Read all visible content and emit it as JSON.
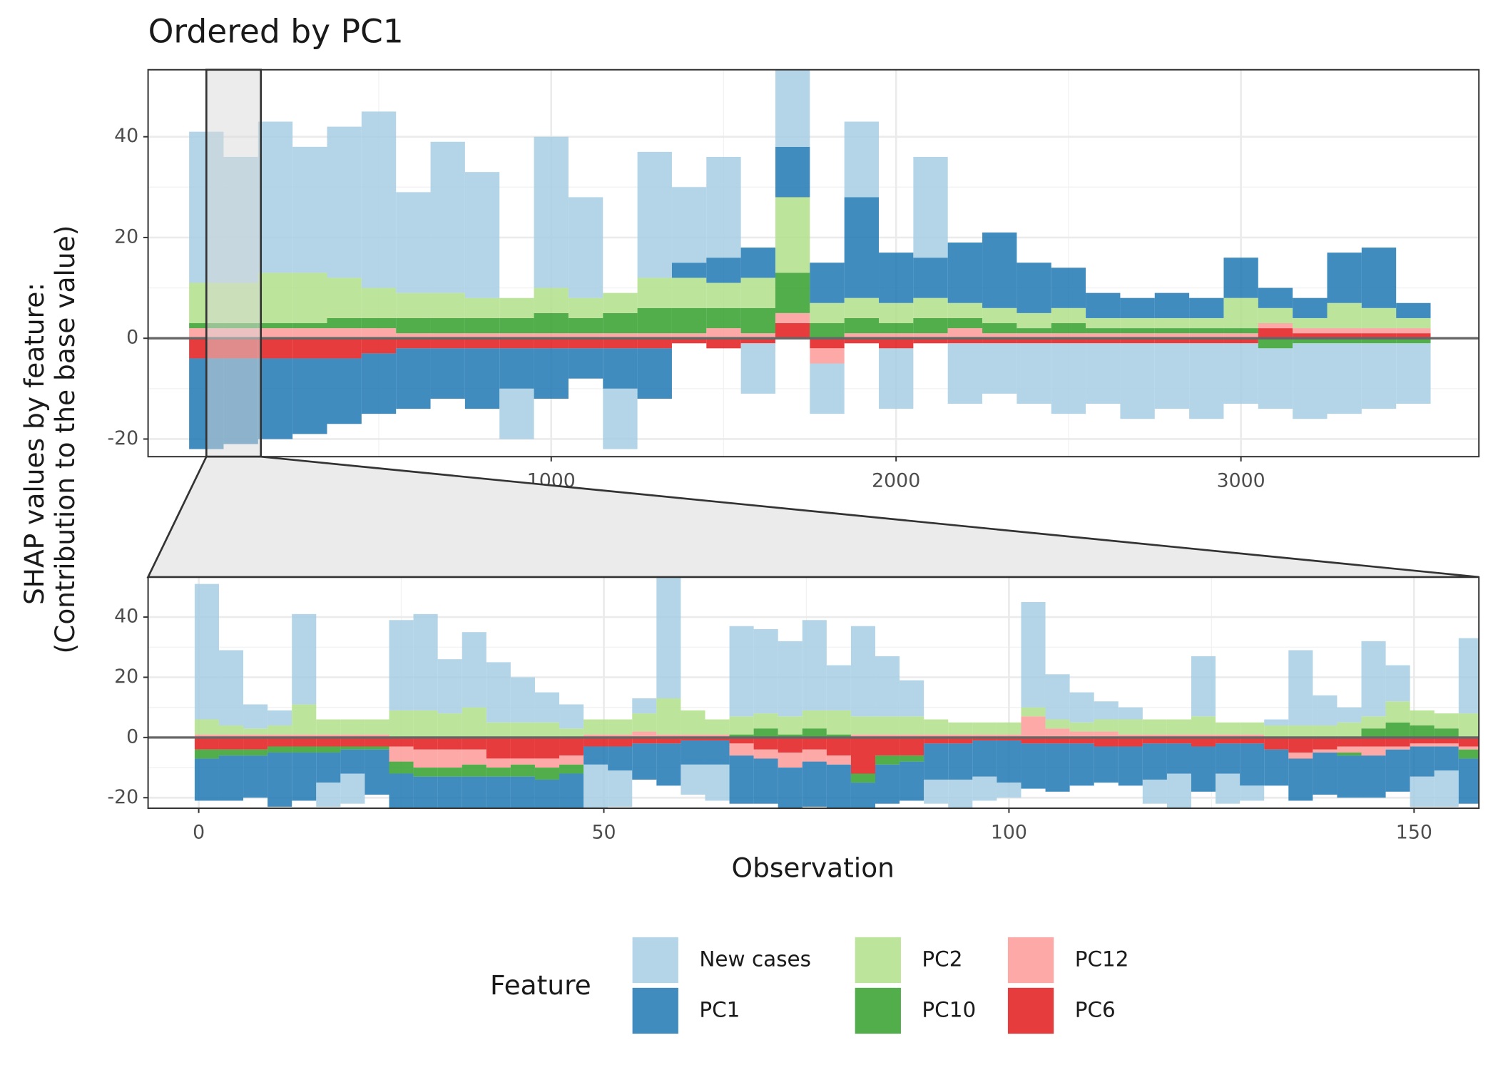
{
  "chart_data": [
    {
      "type": "bar",
      "title": "Ordered by PC1",
      "ylabel": [
        "SHAP values by feature:",
        "(Contribution to the base value)"
      ],
      "x": [
        0,
        100,
        200,
        300,
        400,
        500,
        600,
        700,
        800,
        900,
        1000,
        1100,
        1200,
        1300,
        1400,
        1500,
        1600,
        1700,
        1800,
        1900,
        2000,
        2100,
        2200,
        2300,
        2400,
        2500,
        2600,
        2700,
        2800,
        2900,
        3000,
        3100,
        3200,
        3300,
        3400,
        3500
      ],
      "series": [
        {
          "name": "New cases",
          "color": "#a6cee3",
          "values": [
            30,
            25,
            30,
            25,
            30,
            35,
            20,
            30,
            25,
            -10,
            30,
            20,
            -12,
            25,
            15,
            20,
            -10,
            20,
            -10,
            15,
            -12,
            20,
            -12,
            -10,
            -12,
            -14,
            -12,
            -15,
            -13,
            -15,
            -12,
            -12,
            -15,
            -14,
            -13,
            -12
          ]
        },
        {
          "name": "PC1",
          "color": "#1f78b4",
          "values": [
            -18,
            -17,
            -16,
            -15,
            -13,
            -12,
            -12,
            -10,
            -12,
            -8,
            -10,
            -6,
            -8,
            -10,
            3,
            5,
            6,
            10,
            8,
            20,
            10,
            8,
            12,
            15,
            10,
            8,
            5,
            4,
            5,
            4,
            8,
            4,
            4,
            10,
            12,
            3
          ]
        },
        {
          "name": "PC2",
          "color": "#b2df8a",
          "values": [
            8,
            8,
            10,
            10,
            8,
            6,
            5,
            5,
            4,
            4,
            5,
            4,
            4,
            6,
            6,
            5,
            6,
            15,
            4,
            4,
            4,
            4,
            3,
            3,
            3,
            3,
            2,
            2,
            2,
            2,
            6,
            3,
            2,
            5,
            4,
            2
          ]
        },
        {
          "name": "PC10",
          "color": "#33a02c",
          "values": [
            1,
            1,
            1,
            1,
            2,
            2,
            3,
            3,
            3,
            3,
            4,
            3,
            4,
            5,
            5,
            4,
            5,
            8,
            3,
            3,
            2,
            3,
            2,
            2,
            1,
            2,
            1,
            1,
            1,
            1,
            1,
            -2,
            -1,
            -1,
            -1,
            -1
          ]
        },
        {
          "name": "PC12",
          "color": "#fb9a99",
          "values": [
            2,
            2,
            2,
            2,
            2,
            2,
            1,
            1,
            1,
            1,
            1,
            1,
            1,
            1,
            1,
            2,
            1,
            2,
            -3,
            1,
            1,
            1,
            2,
            1,
            1,
            1,
            1,
            1,
            1,
            1,
            1,
            1,
            1,
            1,
            1,
            1
          ]
        },
        {
          "name": "PC6",
          "color": "#e31a1c",
          "values": [
            -4,
            -4,
            -4,
            -4,
            -4,
            -3,
            -2,
            -2,
            -2,
            -2,
            -2,
            -2,
            -2,
            -2,
            -1,
            -2,
            -1,
            3,
            -2,
            -1,
            -2,
            -1,
            -1,
            -1,
            -1,
            -1,
            -1,
            -1,
            -1,
            -1,
            -1,
            2,
            1,
            1,
            1,
            1
          ]
        }
      ],
      "xlim": [
        -169,
        3690
      ],
      "ylim": [
        -23.5,
        53.3
      ],
      "xticks": [
        0,
        1000,
        2000,
        3000
      ],
      "yticks": [
        -20,
        0,
        20,
        40
      ],
      "grid": true
    },
    {
      "type": "bar",
      "xlabel": "Observation",
      "legend_title": "Feature",
      "x": [
        1,
        4,
        7,
        10,
        13,
        16,
        19,
        22,
        25,
        28,
        31,
        34,
        37,
        40,
        43,
        46,
        49,
        52,
        55,
        58,
        61,
        64,
        67,
        70,
        73,
        76,
        79,
        82,
        85,
        88,
        91,
        94,
        97,
        100,
        103,
        106,
        109,
        112,
        115,
        118,
        121,
        124,
        127,
        130,
        133,
        136,
        139,
        142,
        145,
        148,
        151,
        154,
        157
      ],
      "series": [
        {
          "values": [
            45,
            25,
            8,
            5,
            30,
            -8,
            -10,
            0,
            30,
            32,
            18,
            25,
            20,
            15,
            10,
            8,
            -15,
            -12,
            5,
            40,
            -10,
            -12,
            30,
            28,
            25,
            30,
            15,
            30,
            20,
            12,
            -8,
            -10,
            -8,
            -5,
            35,
            15,
            10,
            6,
            4,
            -8,
            -12,
            20,
            -10,
            -5,
            2,
            25,
            10,
            5,
            25,
            12,
            -10,
            -12,
            25
          ]
        },
        {
          "values": [
            -14,
            -15,
            -14,
            -18,
            -16,
            -10,
            -8,
            -15,
            -17,
            -14,
            -14,
            -14,
            -14,
            -14,
            -14,
            -13,
            -6,
            -8,
            -12,
            -14,
            -8,
            -8,
            -16,
            -15,
            -15,
            -15,
            -15,
            -15,
            -13,
            -13,
            -12,
            -12,
            -12,
            -14,
            -15,
            -16,
            -14,
            -12,
            -13,
            -12,
            -10,
            -15,
            -10,
            -14,
            -12,
            -14,
            -14,
            -14,
            -14,
            -14,
            -10,
            -8,
            -15
          ]
        },
        {
          "values": [
            5,
            3,
            2,
            3,
            10,
            5,
            5,
            5,
            9,
            9,
            8,
            10,
            5,
            5,
            5,
            3,
            5,
            5,
            6,
            12,
            8,
            5,
            6,
            5,
            6,
            6,
            8,
            6,
            6,
            6,
            5,
            4,
            4,
            4,
            3,
            3,
            3,
            4,
            5,
            5,
            5,
            6,
            4,
            4,
            4,
            4,
            4,
            5,
            4,
            7,
            5,
            5,
            8
          ]
        },
        {
          "values": [
            -3,
            -2,
            -2,
            -2,
            -2,
            -2,
            -1,
            -1,
            -4,
            -3,
            -3,
            -4,
            -3,
            -4,
            -4,
            -3,
            0,
            0,
            0,
            0,
            0,
            0,
            1,
            3,
            1,
            3,
            1,
            -3,
            -3,
            -2,
            0,
            0,
            0,
            0,
            0,
            0,
            0,
            0,
            0,
            0,
            0,
            0,
            0,
            0,
            0,
            0,
            0,
            -1,
            3,
            5,
            4,
            3,
            -3
          ]
        },
        {
          "values": [
            1,
            1,
            1,
            1,
            1,
            1,
            1,
            1,
            -5,
            -6,
            -6,
            -5,
            -3,
            -2,
            -3,
            -3,
            1,
            1,
            2,
            1,
            1,
            1,
            -4,
            -3,
            -5,
            -4,
            -3,
            1,
            1,
            1,
            1,
            1,
            1,
            1,
            7,
            3,
            2,
            2,
            1,
            1,
            1,
            1,
            1,
            1,
            0,
            -2,
            -1,
            -2,
            -3,
            -1,
            -1,
            -1,
            -1
          ]
        },
        {
          "values": [
            -4,
            -4,
            -4,
            -3,
            -3,
            -3,
            -3,
            -3,
            -3,
            -4,
            -4,
            -4,
            -7,
            -7,
            -7,
            -6,
            -3,
            -3,
            -2,
            -2,
            -1,
            -1,
            -2,
            -4,
            -5,
            -4,
            -6,
            -12,
            -6,
            -6,
            -2,
            -2,
            -1,
            -1,
            -2,
            -2,
            -2,
            -3,
            -3,
            -2,
            -2,
            -3,
            -2,
            -2,
            -4,
            -5,
            -4,
            -3,
            -3,
            -3,
            -2,
            -2,
            -3
          ]
        }
      ],
      "xlim": [
        -6.25,
        158
      ],
      "ylim": [
        -23.5,
        53.3
      ],
      "xticks": [
        0,
        50,
        100,
        150
      ],
      "yticks": [
        -20,
        0,
        20,
        40
      ],
      "grid": true
    }
  ]
}
